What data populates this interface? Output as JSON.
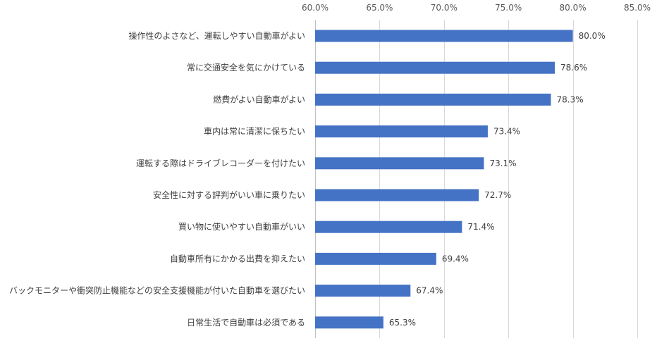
{
  "chart_data": {
    "type": "bar",
    "orientation": "horizontal",
    "title": "",
    "xlabel": "",
    "ylabel": "",
    "xlim": [
      60,
      85
    ],
    "ticks": [
      "60.0%",
      "65.0%",
      "70.0%",
      "75.0%",
      "80.0%",
      "85.0%"
    ],
    "tick_values": [
      60,
      65,
      70,
      75,
      80,
      85
    ],
    "axis_position": "top",
    "grid": true,
    "legend": "none",
    "bar_color": "#4472C4",
    "categories": [
      "操作性のよさなど、運転しやすい自動車がよい",
      "常に交通安全を気にかけている",
      "燃費がよい自動車がよい",
      "車内は常に清潔に保ちたい",
      "運転する際はドライブレコーダーを付けたい",
      "安全性に対する評判がいい車に乗りたい",
      "買い物に使いやすい自動車がいい",
      "自動車所有にかかる出費を抑えたい",
      "バックモニターや衝突防止機能などの安全支援機能が付いた自動車を選びたい",
      "日常生活で自動車は必須である"
    ],
    "values": [
      80.0,
      78.6,
      78.3,
      73.4,
      73.1,
      72.7,
      71.4,
      69.4,
      67.4,
      65.3
    ],
    "value_labels": [
      "80.0%",
      "78.6%",
      "78.3%",
      "73.4%",
      "73.1%",
      "72.7%",
      "71.4%",
      "69.4%",
      "67.4%",
      "65.3%"
    ]
  }
}
